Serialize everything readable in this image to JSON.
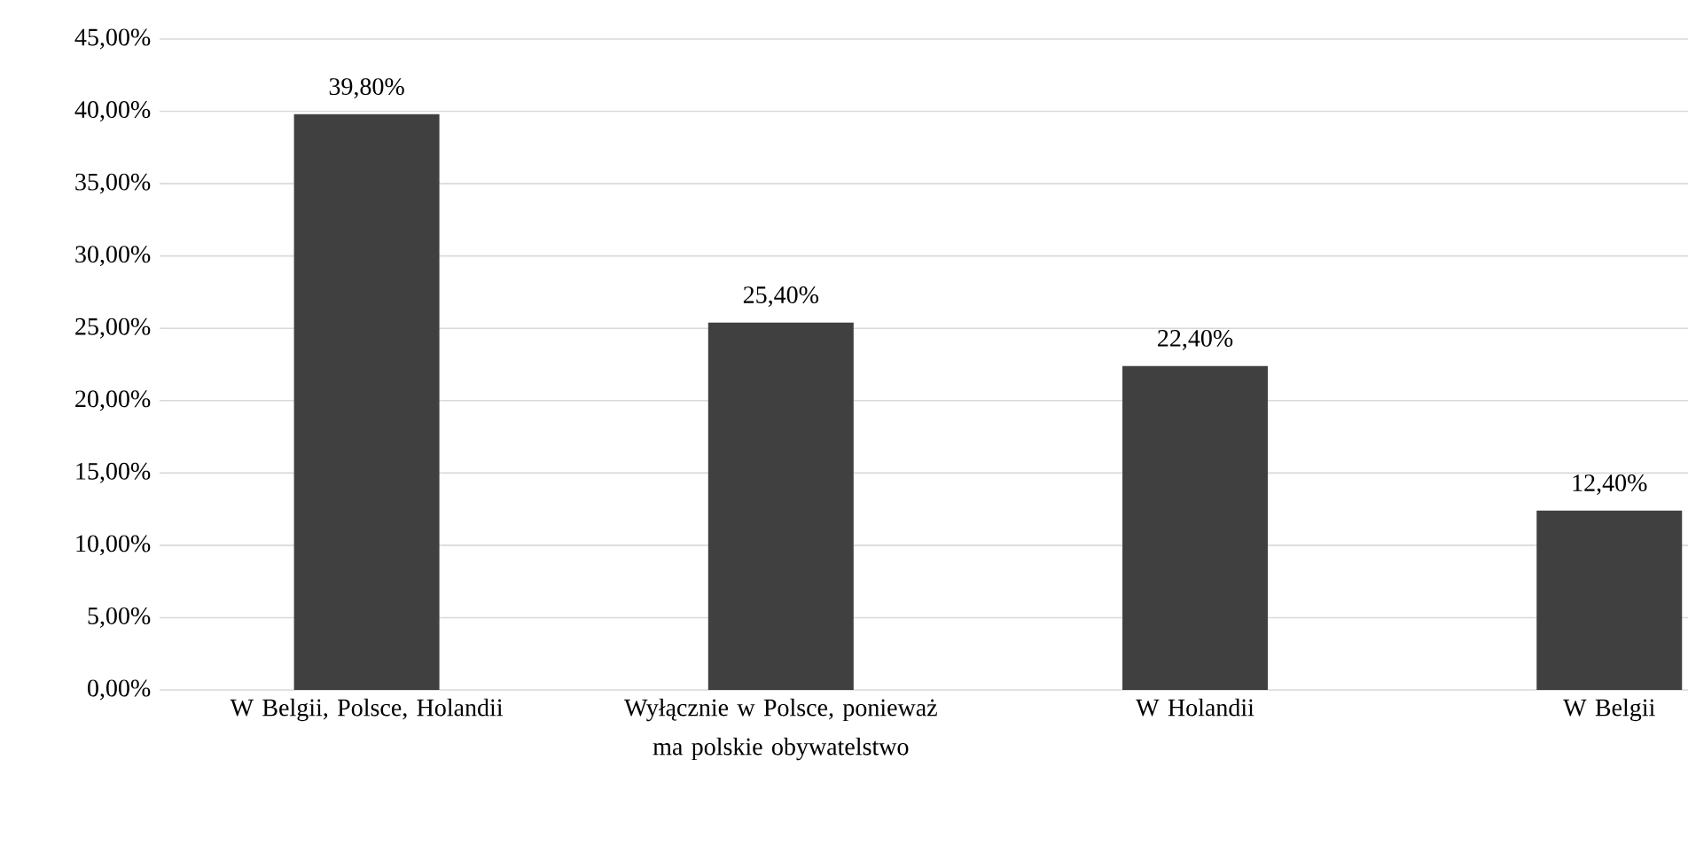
{
  "chart_data": {
    "type": "bar",
    "categories": [
      "W Belgii, Polsce, Holandii",
      "Wyłącznie w Polsce, ponieważ ma polskie obywatelstwo",
      "W Holandii",
      "W Belgii"
    ],
    "values": [
      39.8,
      25.4,
      22.4,
      12.4
    ],
    "value_labels": [
      "39,80%",
      "25,40%",
      "22,40%",
      "12,40%"
    ],
    "color": "#404040",
    "ylim": [
      0,
      45
    ],
    "yticks": [
      {
        "value": 0,
        "label": "0,00%"
      },
      {
        "value": 5,
        "label": "5,00%"
      },
      {
        "value": 10,
        "label": "10,00%"
      },
      {
        "value": 15,
        "label": "15,00%"
      },
      {
        "value": 20,
        "label": "20,00%"
      },
      {
        "value": 25,
        "label": "25,00%"
      },
      {
        "value": 30,
        "label": "30,00%"
      },
      {
        "value": 35,
        "label": "35,00%"
      },
      {
        "value": 40,
        "label": "40,00%"
      },
      {
        "value": 45,
        "label": "45,00%"
      }
    ],
    "grid": "y"
  }
}
